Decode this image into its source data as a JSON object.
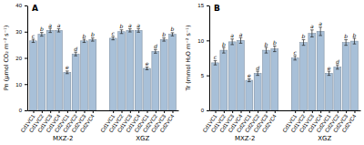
{
  "chart_data": [
    {
      "type": "bar",
      "title": "A",
      "ylabel": "Pn (μmol CO₂ m⁻² s⁻¹)",
      "groups": [
        "MXZ-2",
        "XGZ"
      ],
      "categories": [
        "Cd1VC1",
        "Cd1VC2",
        "Cd1VC3",
        "Cd1VC4",
        "Cd2VC1",
        "Cd2VC2",
        "Cd2VC3",
        "Cd2VC4",
        "Cd1VC1",
        "Cd1VC2",
        "Cd1VC3",
        "Cd1VC4",
        "Cd2VC1",
        "Cd2VC2",
        "Cd2VC3",
        "Cd2VC4"
      ],
      "values": [
        26.5,
        29.0,
        30.5,
        30.5,
        14.5,
        21.5,
        26.5,
        27.0,
        27.5,
        30.0,
        30.5,
        30.5,
        16.0,
        22.5,
        27.0,
        29.0
      ],
      "errors": [
        0.6,
        0.7,
        0.8,
        0.6,
        0.5,
        0.7,
        0.6,
        0.6,
        0.6,
        0.7,
        0.6,
        0.7,
        0.5,
        0.7,
        0.6,
        0.6
      ],
      "annotations": [
        "c",
        "b",
        "a",
        "a",
        "e",
        "d",
        "b",
        "b",
        "c",
        "b",
        "a",
        "a",
        "e",
        "d",
        "b",
        "b"
      ],
      "color": "#a8c0d8",
      "ylim": [
        0,
        40
      ],
      "yticks": [
        0,
        10,
        20,
        30,
        40
      ]
    },
    {
      "type": "bar",
      "title": "B",
      "ylabel": "Tr (mmol H₂O m⁻² s⁻¹)",
      "groups": [
        "MXZ-2",
        "XGZ"
      ],
      "categories": [
        "Cd1VC1",
        "Cd1VC2",
        "Cd1VC3",
        "Cd1VC4",
        "Cd2VC1",
        "Cd2VC2",
        "Cd2VC3",
        "Cd2VC4",
        "Cd1VC1",
        "Cd1VC2",
        "Cd1VC3",
        "Cd1VC4",
        "Cd2VC1",
        "Cd2VC2",
        "Cd2VC3",
        "Cd2VC4"
      ],
      "values": [
        6.8,
        8.6,
        9.8,
        10.0,
        4.3,
        5.3,
        8.6,
        8.8,
        7.5,
        9.7,
        11.0,
        11.3,
        5.3,
        6.2,
        9.7,
        9.9
      ],
      "errors": [
        0.3,
        0.4,
        0.4,
        0.4,
        0.2,
        0.3,
        0.4,
        0.4,
        0.3,
        0.4,
        0.5,
        0.6,
        0.3,
        0.3,
        0.4,
        0.4
      ],
      "annotations": [
        "c",
        "b",
        "a",
        "a",
        "e",
        "d",
        "b",
        "b",
        "c",
        "b",
        "a",
        "a",
        "e",
        "d",
        "b",
        "b"
      ],
      "color": "#a8c0d8",
      "ylim": [
        0,
        15
      ],
      "yticks": [
        0,
        5,
        10,
        15
      ]
    }
  ]
}
